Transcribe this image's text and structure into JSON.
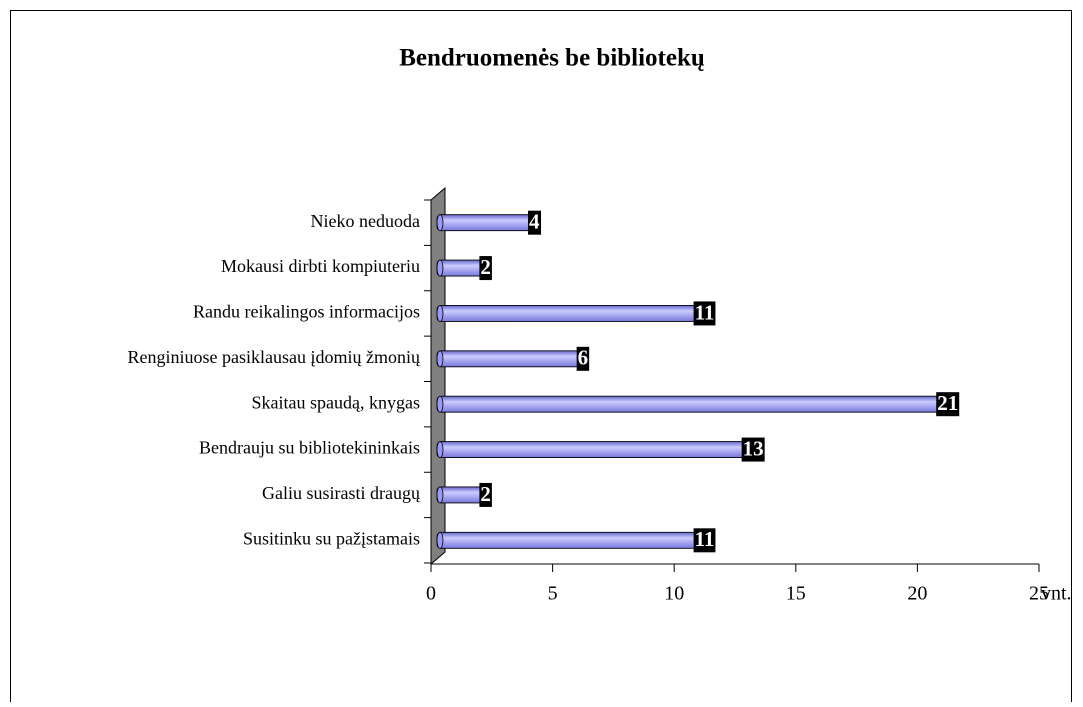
{
  "chart_data": {
    "type": "bar",
    "orientation": "horizontal",
    "title": "Bendruomenės be bibliotekų",
    "x_label": "vnt.",
    "categories": [
      "Nieko neduoda",
      "Mokausi dirbti kompiuteriu",
      "Randu reikalingos informacijos",
      "Renginiuose pasiklausau įdomių žmonių",
      "Skaitau spaudą, knygas",
      "Bendrauju su bibliotekininkais",
      "Galiu susirasti draugų",
      "Susitinku su pažįstamais"
    ],
    "values": [
      4,
      2,
      11,
      6,
      21,
      13,
      2,
      11
    ],
    "color": "#9999ff",
    "xlim": [
      0,
      25
    ],
    "xticks": [
      0,
      5,
      10,
      15,
      20,
      25
    ]
  }
}
